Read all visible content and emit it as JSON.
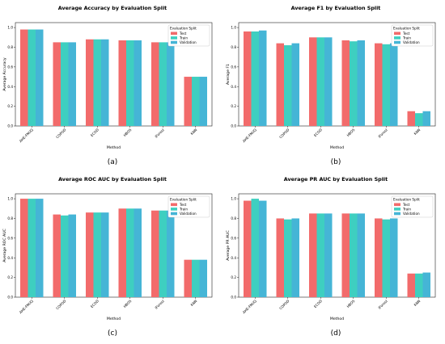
{
  "legend_title": "Evaluation Split",
  "colors": {
    "Test": "#f26b6b",
    "Train": "#3ecfc0",
    "Validation": "#45b5d6"
  },
  "chart_data": [
    {
      "type": "bar",
      "title": "Average Accuracy by Evaluation Split",
      "xlabel": "Method",
      "ylabel": "Average Accuracy",
      "panel_label": "(a)",
      "categories": [
        "AHE-FNUQ",
        "COPOD",
        "ECOD",
        "HBOS",
        "IForest",
        "KNN"
      ],
      "series": [
        {
          "name": "Test",
          "values": [
            0.98,
            0.85,
            0.88,
            0.87,
            0.85,
            0.5
          ]
        },
        {
          "name": "Train",
          "values": [
            0.98,
            0.85,
            0.88,
            0.87,
            0.85,
            0.5
          ]
        },
        {
          "name": "Validation",
          "values": [
            0.98,
            0.85,
            0.88,
            0.87,
            0.85,
            0.5
          ]
        }
      ],
      "yticks": [
        0.0,
        0.2,
        0.4,
        0.6,
        0.8,
        1.0
      ],
      "ylim": [
        0,
        1.05
      ],
      "legend": "top-right"
    },
    {
      "type": "bar",
      "title": "Average F1 by Evaluation Split",
      "xlabel": "Method",
      "ylabel": "Average F1",
      "panel_label": "(b)",
      "categories": [
        "AHE-FNUQ",
        "COPOD",
        "ECOD",
        "HBOS",
        "IForest",
        "KNN"
      ],
      "series": [
        {
          "name": "Test",
          "values": [
            0.96,
            0.84,
            0.9,
            0.87,
            0.84,
            0.15
          ]
        },
        {
          "name": "Train",
          "values": [
            0.96,
            0.82,
            0.9,
            0.86,
            0.83,
            0.13
          ]
        },
        {
          "name": "Validation",
          "values": [
            0.97,
            0.84,
            0.9,
            0.87,
            0.84,
            0.15
          ]
        }
      ],
      "yticks": [
        0.0,
        0.2,
        0.4,
        0.6,
        0.8,
        1.0
      ],
      "ylim": [
        0,
        1.05
      ],
      "legend": "top-right"
    },
    {
      "type": "bar",
      "title": "Average ROC AUC by Evaluation Split",
      "xlabel": "Method",
      "ylabel": "Average ROC AUC",
      "panel_label": "(c)",
      "categories": [
        "AHE-FNUQ",
        "COPOD",
        "ECOD",
        "HBOS",
        "IForest",
        "KNN"
      ],
      "series": [
        {
          "name": "Test",
          "values": [
            1.0,
            0.84,
            0.86,
            0.9,
            0.88,
            0.38
          ]
        },
        {
          "name": "Train",
          "values": [
            1.0,
            0.83,
            0.86,
            0.9,
            0.88,
            0.38
          ]
        },
        {
          "name": "Validation",
          "values": [
            1.0,
            0.84,
            0.86,
            0.9,
            0.88,
            0.38
          ]
        }
      ],
      "yticks": [
        0.0,
        0.2,
        0.4,
        0.6,
        0.8,
        1.0
      ],
      "ylim": [
        0,
        1.05
      ],
      "legend": "top-right"
    },
    {
      "type": "bar",
      "title": "Average PR AUC by Evaluation Split",
      "xlabel": "Method",
      "ylabel": "Average PR AUC",
      "panel_label": "(d)",
      "categories": [
        "AHE-FNUQ",
        "COPOD",
        "ECOD",
        "HBOS",
        "IForest",
        "KNN"
      ],
      "series": [
        {
          "name": "Test",
          "values": [
            0.98,
            0.8,
            0.85,
            0.85,
            0.8,
            0.24
          ]
        },
        {
          "name": "Train",
          "values": [
            1.0,
            0.79,
            0.85,
            0.85,
            0.79,
            0.24
          ]
        },
        {
          "name": "Validation",
          "values": [
            0.98,
            0.8,
            0.85,
            0.85,
            0.8,
            0.25
          ]
        }
      ],
      "yticks": [
        0.0,
        0.2,
        0.4,
        0.6,
        0.8,
        1.0
      ],
      "ylim": [
        0,
        1.05
      ],
      "legend": "top-right"
    }
  ]
}
